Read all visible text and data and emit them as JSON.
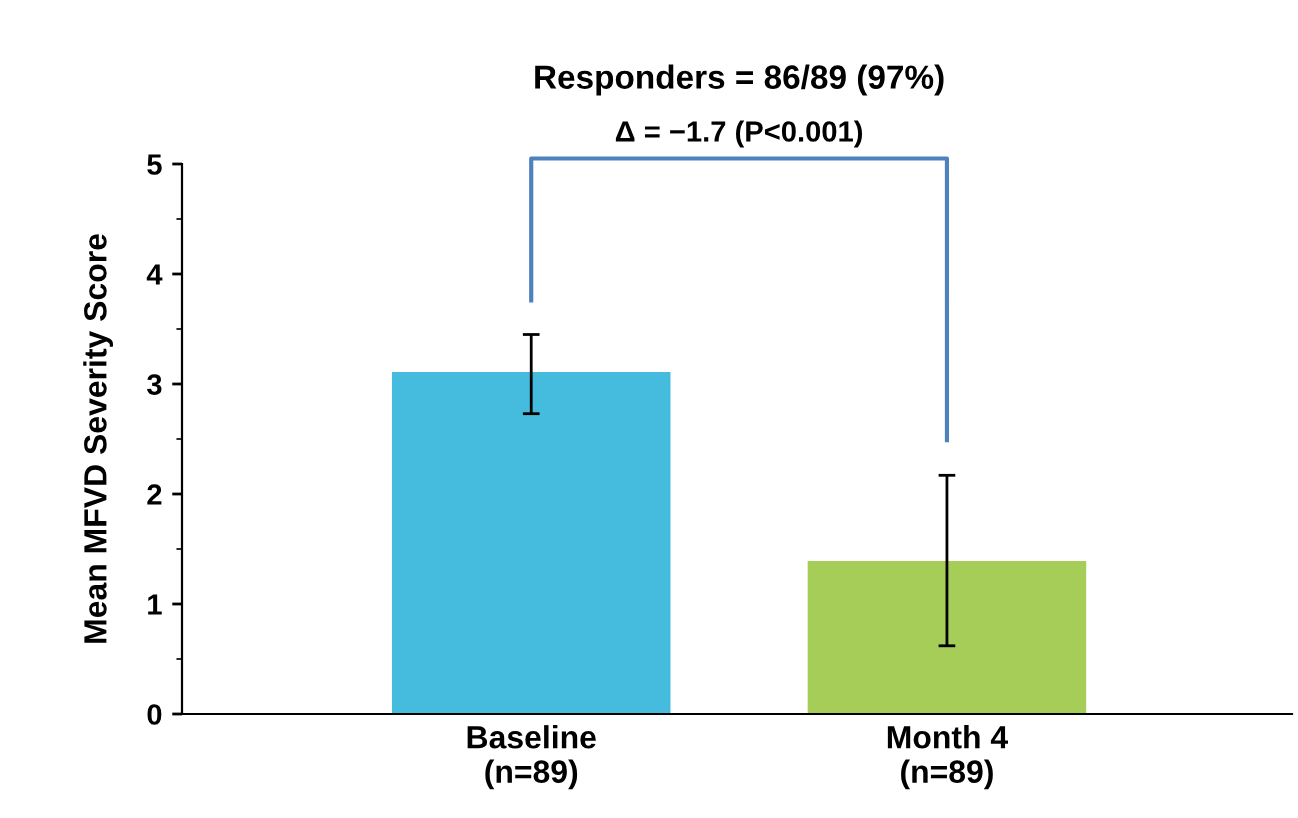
{
  "chart_data": {
    "type": "bar",
    "title": "Responders = 86/89 (97%)",
    "ylabel": "Mean MFVD Severity Score",
    "annotations": [
      "Δ = −1.7 (P<0.001)"
    ],
    "categories": [
      "Baseline\n(n=89)",
      "Month 4\n(n=89)"
    ],
    "values": [
      3.11,
      1.39
    ],
    "colors": [
      "#45bcdd",
      "#a6cd57"
    ],
    "errors": [
      [
        2.73,
        3.45
      ],
      [
        0.62,
        2.17
      ]
    ],
    "ylim": [
      0,
      5
    ],
    "yticks": [
      0,
      1,
      2,
      3,
      4,
      5
    ],
    "grid": false,
    "legend": false
  }
}
